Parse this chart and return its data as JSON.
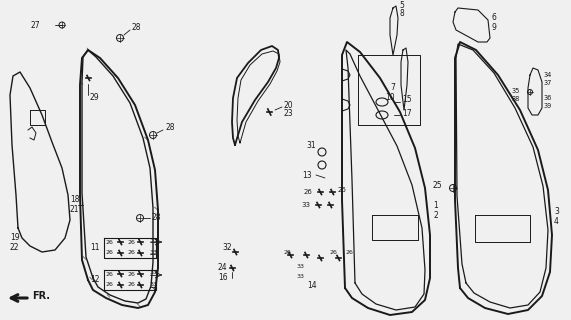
{
  "bg_color": "#f0f0f0",
  "line_color": "#1a1a1a",
  "figsize": [
    5.71,
    3.2
  ],
  "dpi": 100,
  "parts": {
    "panel_blob": {
      "x": [
        18,
        22,
        30,
        42,
        55,
        65,
        70,
        68,
        62,
        52,
        42,
        30,
        20,
        13,
        10,
        12,
        16,
        18
      ],
      "y": [
        228,
        238,
        246,
        252,
        250,
        238,
        220,
        195,
        168,
        142,
        115,
        88,
        72,
        76,
        95,
        145,
        195,
        228
      ]
    },
    "frame_outer": {
      "x": [
        88,
        93,
        106,
        122,
        138,
        148,
        155,
        158,
        158,
        155,
        148,
        135,
        118,
        100,
        88,
        82,
        80,
        80,
        82,
        88
      ],
      "y": [
        280,
        290,
        298,
        305,
        308,
        305,
        292,
        268,
        210,
        170,
        140,
        105,
        78,
        58,
        50,
        58,
        85,
        195,
        260,
        280
      ]
    },
    "frame_inner": {
      "x": [
        93,
        98,
        110,
        125,
        138,
        146,
        151,
        153,
        153,
        150,
        143,
        130,
        113,
        96,
        88,
        83,
        82,
        82,
        86,
        93
      ],
      "y": [
        278,
        287,
        295,
        301,
        303,
        299,
        286,
        262,
        208,
        168,
        138,
        103,
        76,
        57,
        50,
        57,
        82,
        193,
        257,
        278
      ]
    },
    "sash_outer": {
      "x": [
        240,
        248,
        260,
        272,
        278,
        280,
        278,
        272,
        262,
        250,
        240,
        235,
        235,
        238,
        240
      ],
      "y": [
        142,
        120,
        100,
        82,
        68,
        58,
        50,
        45,
        48,
        60,
        75,
        95,
        120,
        135,
        142
      ]
    },
    "sash_inner": {
      "x": [
        245,
        252,
        262,
        272,
        277,
        278,
        275,
        268,
        258,
        248,
        240,
        237,
        238,
        242,
        245
      ],
      "y": [
        140,
        120,
        101,
        84,
        71,
        62,
        54,
        49,
        52,
        63,
        77,
        95,
        118,
        133,
        140
      ]
    },
    "door_outer": {
      "x": [
        345,
        352,
        368,
        390,
        412,
        425,
        430,
        430,
        425,
        415,
        400,
        380,
        360,
        347,
        342,
        342,
        345
      ],
      "y": [
        288,
        298,
        308,
        315,
        312,
        300,
        278,
        235,
        188,
        148,
        112,
        78,
        52,
        42,
        55,
        200,
        288
      ]
    },
    "door_inner": {
      "x": [
        355,
        362,
        376,
        396,
        415,
        424,
        425,
        422,
        412,
        397,
        378,
        360,
        350,
        346,
        348,
        352,
        355
      ],
      "y": [
        283,
        294,
        304,
        310,
        307,
        294,
        270,
        228,
        185,
        146,
        110,
        76,
        54,
        50,
        68,
        180,
        283
      ]
    },
    "rdoor_outer": {
      "x": [
        460,
        468,
        485,
        508,
        528,
        542,
        550,
        552,
        548,
        538,
        520,
        498,
        476,
        460,
        455,
        455,
        458,
        460
      ],
      "y": [
        288,
        298,
        308,
        314,
        310,
        296,
        272,
        235,
        190,
        150,
        110,
        75,
        50,
        42,
        58,
        200,
        268,
        288
      ]
    },
    "rdoor_inner": {
      "x": [
        466,
        474,
        490,
        510,
        528,
        540,
        546,
        548,
        543,
        533,
        515,
        494,
        473,
        458,
        456,
        457,
        462,
        466
      ],
      "y": [
        283,
        293,
        302,
        308,
        305,
        292,
        268,
        230,
        186,
        147,
        108,
        73,
        50,
        44,
        58,
        196,
        264,
        283
      ]
    }
  }
}
